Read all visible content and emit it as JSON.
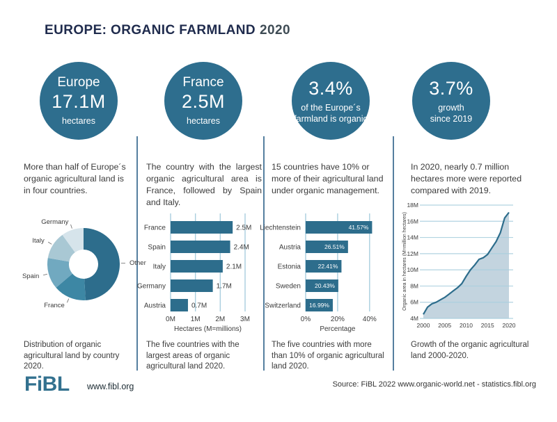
{
  "title": {
    "main": "EUROPE: ORGANIC FARMLAND",
    "year": "2020"
  },
  "columns": [
    {
      "circle": {
        "top": "Europe",
        "big": "17.1M",
        "sub": "hectares"
      },
      "intro": "More than half of Europe´s organic agricultural land is in four countries.",
      "caption": "Distribution of organic agricultural land by country 2020."
    },
    {
      "circle": {
        "top": "France",
        "big": "2.5M",
        "sub": "hectares"
      },
      "intro": "The country with the largest organic agricultural area is France, followed by Spain and Italy.",
      "caption": "The five countries with the largest areas of organic agricultural land 2020."
    },
    {
      "circle": {
        "top": "",
        "big": "3.4%",
        "sub": "of the Europe´s\nfarmland is organic"
      },
      "intro": "15 countries have 10% or more of their agricultural land under organic management.",
      "caption": "The five countries with more than 10% of organic agricultural land 2020."
    },
    {
      "circle": {
        "top": "",
        "big": "3.7%",
        "sub": "growth\nsince 2019"
      },
      "intro": "In 2020, nearly 0.7 million hectares more were reported compared with 2019.",
      "caption": "Growth of the organic agricultural land 2000-2020."
    }
  ],
  "colors": {
    "accent": "#2e6e8e",
    "bar": "#2d6d8c",
    "grid": "#a9cede",
    "area": "#b9cdd9",
    "separator": "#557f9f",
    "label_text": "#3b3b3b",
    "value_inside": "#ffffff"
  },
  "chart_data": [
    {
      "type": "pie",
      "donut": true,
      "title": "Distribution of organic agricultural land by country 2020",
      "unit": "million hectares",
      "labels": [
        "Other",
        "France",
        "Spain",
        "Italy",
        "Germany"
      ],
      "values": [
        8.4,
        2.5,
        2.4,
        2.1,
        1.7
      ],
      "colors": [
        "#2d6d8c",
        "#3d87a4",
        "#71a9c0",
        "#a9c8d4",
        "#d6e4eb"
      ]
    },
    {
      "type": "bar",
      "orientation": "horizontal",
      "title": "The five countries with the largest areas of organic agricultural land 2020",
      "categories": [
        "France",
        "Spain",
        "Italy",
        "Germany",
        "Austria"
      ],
      "values": [
        2.5,
        2.4,
        2.1,
        1.7,
        0.7
      ],
      "value_labels": [
        "2.5M",
        "2.4M",
        "2.1M",
        "1.7M",
        "0.7M"
      ],
      "xlabel": "Hectares (M=millions)",
      "xlim": [
        0,
        3
      ],
      "ticks": [
        0,
        1,
        2,
        3
      ],
      "tick_labels": [
        "0M",
        "1M",
        "2M",
        "3M"
      ]
    },
    {
      "type": "bar",
      "orientation": "horizontal",
      "title": "The five countries with more than 10% of organic agricultural land 2020",
      "categories": [
        "Liechtenstein",
        "Austria",
        "Estonia",
        "Sweden",
        "Switzerland"
      ],
      "values": [
        41.57,
        26.51,
        22.41,
        20.43,
        16.99
      ],
      "value_labels": [
        "41.57%",
        "26.51%",
        "22.41%",
        "20.43%",
        "16.99%"
      ],
      "xlabel": "Percentage",
      "xlim": [
        0,
        44
      ],
      "ticks": [
        0,
        20,
        40
      ],
      "tick_labels": [
        "0%",
        "20%",
        "40%"
      ]
    },
    {
      "type": "area",
      "title": "Growth of the organic agricultural land 2000-2020",
      "x": [
        2000,
        2001,
        2002,
        2003,
        2004,
        2005,
        2006,
        2007,
        2008,
        2009,
        2010,
        2011,
        2012,
        2013,
        2014,
        2015,
        2016,
        2017,
        2018,
        2019,
        2020
      ],
      "y": [
        4.5,
        5.4,
        5.8,
        6.0,
        6.3,
        6.6,
        7.0,
        7.4,
        7.8,
        8.3,
        9.2,
        10.0,
        10.6,
        11.3,
        11.5,
        11.9,
        12.7,
        13.5,
        14.6,
        16.4,
        17.1
      ],
      "ylabel": "Organic area in hectares (M=million hectares)",
      "ylim": [
        4,
        18
      ],
      "yticks": [
        "4M",
        "6M",
        "8M",
        "10M",
        "12M",
        "14M",
        "16M",
        "18M"
      ],
      "xticks": [
        2000,
        2005,
        2010,
        2015,
        2020
      ]
    }
  ],
  "footer": {
    "logo": "FiBL",
    "website": "www.fibl.org",
    "source": "Source: FiBL 2022 www.organic-world.net - statistics.fibl.org"
  }
}
